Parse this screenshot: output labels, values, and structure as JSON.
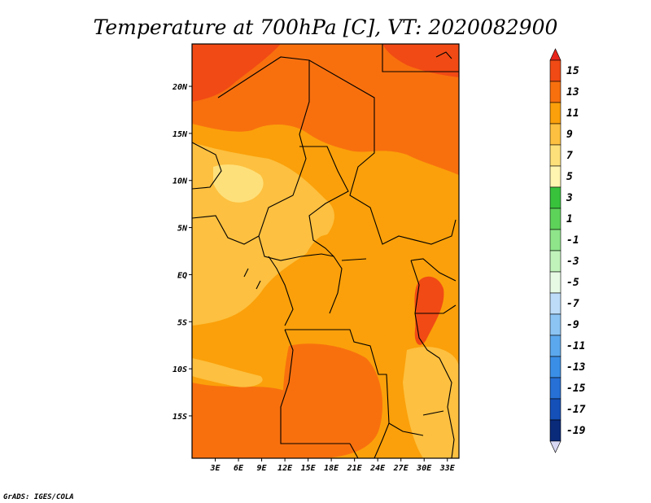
{
  "title": "Temperature at 700hPa [C], VT: 2020082900",
  "credit": "GrADS: IGES/COLA",
  "map": {
    "lon_range": [
      0,
      34.5
    ],
    "lat_range": [
      -19.5,
      24.5
    ],
    "lat_ticks": [
      {
        "value": 20,
        "label": "20N"
      },
      {
        "value": 15,
        "label": "15N"
      },
      {
        "value": 10,
        "label": "10N"
      },
      {
        "value": 5,
        "label": "5N"
      },
      {
        "value": 0,
        "label": "EQ"
      },
      {
        "value": -5,
        "label": "5S"
      },
      {
        "value": -10,
        "label": "10S"
      },
      {
        "value": -15,
        "label": "15S"
      }
    ],
    "lon_ticks": [
      {
        "value": 3,
        "label": "3E"
      },
      {
        "value": 6,
        "label": "6E"
      },
      {
        "value": 9,
        "label": "9E"
      },
      {
        "value": 12,
        "label": "12E"
      },
      {
        "value": 15,
        "label": "15E"
      },
      {
        "value": 18,
        "label": "18E"
      },
      {
        "value": 21,
        "label": "21E"
      },
      {
        "value": 24,
        "label": "24E"
      },
      {
        "value": 27,
        "label": "27E"
      },
      {
        "value": 30,
        "label": "30E"
      },
      {
        "value": 33,
        "label": "33E"
      }
    ]
  },
  "colorbar": {
    "labels": [
      "15",
      "13",
      "11",
      "9",
      "7",
      "5",
      "3",
      "1",
      "-1",
      "-3",
      "-5",
      "-7",
      "-9",
      "-11",
      "-13",
      "-15",
      "-17",
      "-19"
    ],
    "top_color": "#e8261c",
    "bottom_color": "#d8d8f4",
    "colors": [
      "#f14a14",
      "#f8700e",
      "#fba00a",
      "#fdc040",
      "#fee07a",
      "#fff4b0",
      "#38c23c",
      "#5ed35a",
      "#8ee58a",
      "#c0f3ba",
      "#e6fae4",
      "#bcdcf8",
      "#8cc4f4",
      "#5ca8ee",
      "#3a8ee6",
      "#2670d6",
      "#1450b8",
      "#0a2a7a"
    ]
  }
}
